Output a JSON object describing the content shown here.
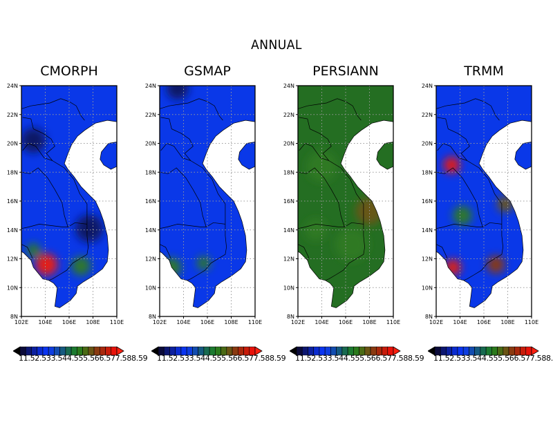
{
  "title": "ANNUAL",
  "panels": [
    {
      "name": "CMORPH",
      "hot_spots": [
        {
          "lon": 104.1,
          "lat": 11.6,
          "r": 16,
          "color": "#ee1a0c"
        },
        {
          "lon": 103.0,
          "lat": 20.2,
          "r": 18,
          "color": "#0a1660"
        },
        {
          "lon": 107.7,
          "lat": 14.1,
          "r": 20,
          "color": "#0a1660"
        },
        {
          "lon": 107.0,
          "lat": 11.5,
          "r": 14,
          "color": "#2e7a22"
        },
        {
          "lon": 103.0,
          "lat": 12.6,
          "r": 10,
          "color": "#2e7a22"
        }
      ]
    },
    {
      "name": "GSMAP",
      "hot_spots": [
        {
          "lon": 103.0,
          "lat": 11.4,
          "r": 14,
          "color": "#2e7a22"
        },
        {
          "lon": 105.7,
          "lat": 11.7,
          "r": 10,
          "color": "#2e7a22"
        },
        {
          "lon": 103.5,
          "lat": 23.8,
          "r": 16,
          "color": "#0a1660"
        }
      ]
    },
    {
      "name": "PERSIANN",
      "hot_spots": [
        {
          "lon": 108.0,
          "lat": 15.3,
          "r": 20,
          "color": "#6a5418"
        },
        {
          "lon": 104.0,
          "lat": 18.4,
          "r": 22,
          "color": "#2e7a22"
        },
        {
          "lon": 106.5,
          "lat": 13.0,
          "r": 24,
          "color": "#2e7a22"
        },
        {
          "lon": 103.5,
          "lat": 14.0,
          "r": 16,
          "color": "#2e7a22"
        }
      ]
    },
    {
      "name": "TRMM",
      "hot_spots": [
        {
          "lon": 103.3,
          "lat": 18.5,
          "r": 12,
          "color": "#e8190a"
        },
        {
          "lon": 103.4,
          "lat": 11.4,
          "r": 12,
          "color": "#e01a0c"
        },
        {
          "lon": 107.0,
          "lat": 11.6,
          "r": 13,
          "color": "#8a3a10"
        },
        {
          "lon": 107.8,
          "lat": 15.8,
          "r": 12,
          "color": "#6a5418"
        },
        {
          "lon": 104.2,
          "lat": 15.0,
          "r": 14,
          "color": "#2e7a22"
        }
      ]
    }
  ],
  "axes": {
    "lon_ticks": [
      "102E",
      "104E",
      "106E",
      "108E",
      "110E"
    ],
    "lat_ticks": [
      "24N",
      "22N",
      "20N",
      "18N",
      "16N",
      "14N",
      "12N",
      "10N",
      "8N"
    ],
    "lon_range": [
      102,
      110
    ],
    "lat_range": [
      8,
      24
    ]
  },
  "colorbar": {
    "label_text": "11.52.533.544.555.566.577.588.59",
    "colors": [
      "#000000",
      "#0b0b3a",
      "#0c1670",
      "#0c20a0",
      "#0a2bd0",
      "#0a34f0",
      "#0e3de0",
      "#124cb0",
      "#155a80",
      "#186a50",
      "#1c7a30",
      "#2a7a1c",
      "#4a6a14",
      "#6a5414",
      "#8a3a10",
      "#a8280c",
      "#c81c0a",
      "#e8120a",
      "#ff2010"
    ]
  },
  "legend_colors": {
    "base_blue": "#0a38e8",
    "base_green": "#246e22",
    "ocean": "#ffffff"
  }
}
